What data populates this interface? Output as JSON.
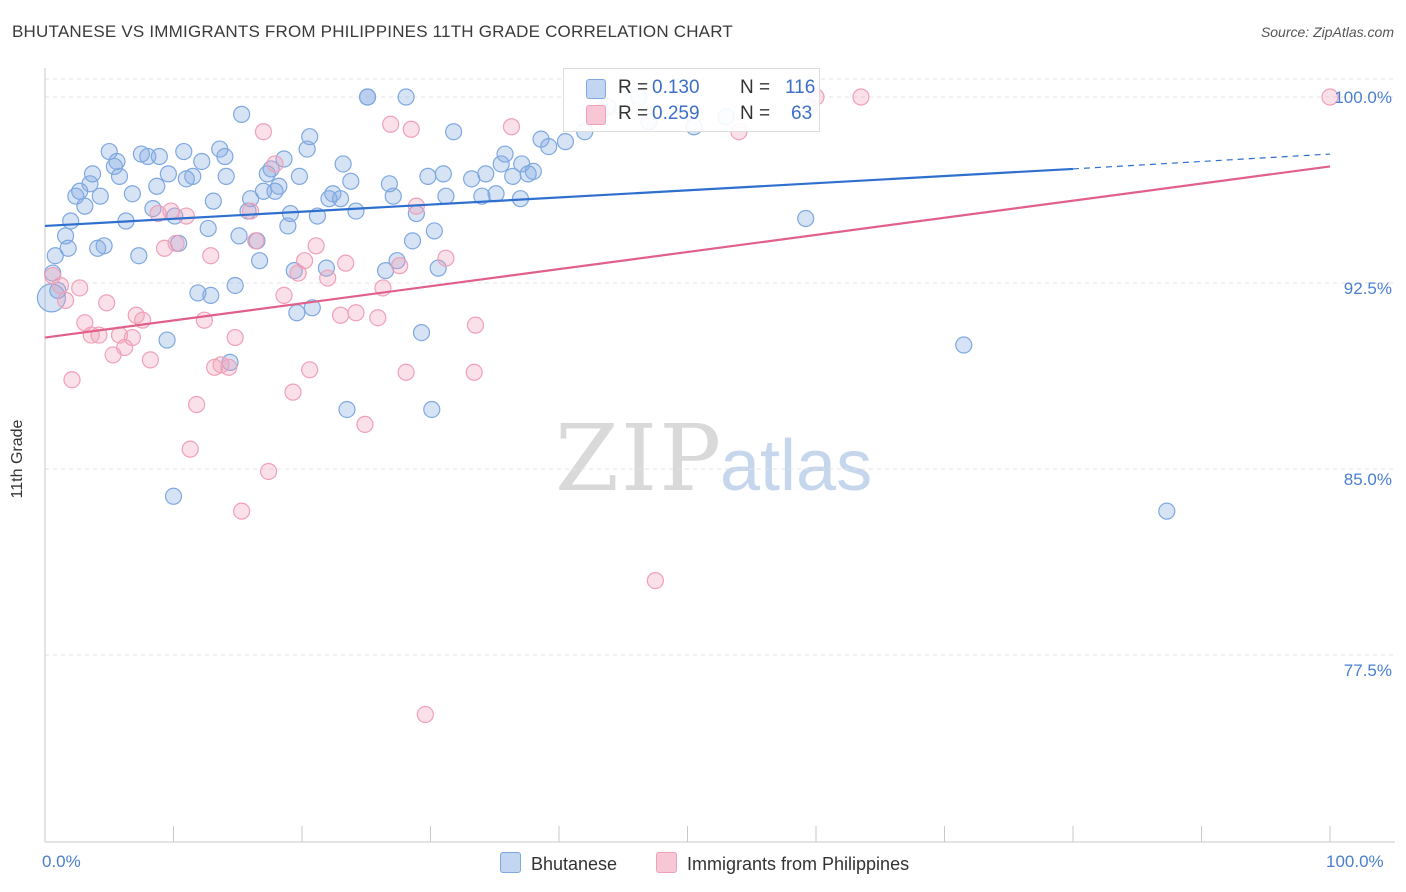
{
  "title": "BHUTANESE VS IMMIGRANTS FROM PHILIPPINES 11TH GRADE CORRELATION CHART",
  "source": "Source: ZipAtlas.com",
  "watermark": {
    "zip": "ZIP",
    "atlas": "atlas"
  },
  "colors": {
    "blue": "#7fa8e0",
    "blue_line": "#2f6fce",
    "pink": "#f0a0b8",
    "pink_line": "#e0608a",
    "grid": "#e3e3e3",
    "axis_label": "#4a7fd0"
  },
  "legend": {
    "rows": [
      {
        "r_label": "R =",
        "r_value": "0.130",
        "n_label": "N =",
        "n_value": "116"
      },
      {
        "r_label": "R =",
        "r_value": "0.259",
        "n_label": "N =",
        "n_value": "63"
      }
    ]
  },
  "bottom_legend": [
    "Bhutanese",
    "Immigrants from Philippines"
  ],
  "chart_data": {
    "type": "scatter",
    "title": "BHUTANESE VS IMMIGRANTS FROM PHILIPPINES 11TH GRADE CORRELATION CHART",
    "xlabel": "",
    "ylabel": "11th Grade",
    "xlim": [
      0,
      100
    ],
    "ylim": [
      70.0,
      101.0
    ],
    "x_tick_labels": [
      "0.0%",
      "100.0%"
    ],
    "y_ticks": [
      77.5,
      85.0,
      92.5,
      100.0
    ],
    "y_tick_labels": [
      "77.5%",
      "85.0%",
      "92.5%",
      "100.0%"
    ],
    "grid": true,
    "legend_position": "top-center",
    "series": [
      {
        "name": "Bhutanese",
        "R": 0.13,
        "N": 116,
        "trend": {
          "x0": 0,
          "y0": 94.8,
          "x1": 80,
          "y1": 97.1,
          "dashed_to_x": 100,
          "dashed_to_y": 97.7
        },
        "points": [
          [
            0.5,
            91.9
          ],
          [
            0.6,
            92.9
          ],
          [
            0.8,
            93.6
          ],
          [
            1.0,
            92.2
          ],
          [
            1.6,
            94.4
          ],
          [
            1.8,
            93.9
          ],
          [
            2.0,
            95.0
          ],
          [
            2.4,
            96.0
          ],
          [
            2.7,
            96.2
          ],
          [
            3.1,
            95.6
          ],
          [
            3.5,
            96.5
          ],
          [
            3.7,
            96.9
          ],
          [
            4.1,
            93.9
          ],
          [
            4.3,
            96.0
          ],
          [
            4.6,
            94.0
          ],
          [
            5.0,
            97.8
          ],
          [
            5.4,
            97.2
          ],
          [
            5.6,
            97.4
          ],
          [
            5.8,
            96.8
          ],
          [
            6.3,
            95.0
          ],
          [
            6.8,
            96.1
          ],
          [
            7.3,
            93.6
          ],
          [
            7.5,
            97.7
          ],
          [
            8.0,
            97.6
          ],
          [
            8.4,
            95.5
          ],
          [
            8.7,
            96.4
          ],
          [
            8.9,
            97.6
          ],
          [
            9.5,
            90.2
          ],
          [
            9.6,
            96.9
          ],
          [
            10.0,
            83.9
          ],
          [
            10.1,
            95.2
          ],
          [
            10.4,
            94.1
          ],
          [
            10.8,
            97.8
          ],
          [
            11.0,
            96.7
          ],
          [
            11.5,
            96.8
          ],
          [
            11.9,
            92.1
          ],
          [
            12.2,
            97.4
          ],
          [
            12.7,
            94.7
          ],
          [
            12.9,
            92.0
          ],
          [
            13.1,
            95.8
          ],
          [
            13.6,
            97.9
          ],
          [
            14.0,
            97.6
          ],
          [
            14.1,
            96.8
          ],
          [
            14.4,
            89.3
          ],
          [
            14.8,
            92.4
          ],
          [
            15.1,
            94.4
          ],
          [
            15.3,
            99.3
          ],
          [
            15.8,
            95.4
          ],
          [
            16.0,
            95.9
          ],
          [
            16.5,
            94.2
          ],
          [
            16.7,
            93.4
          ],
          [
            17.0,
            96.2
          ],
          [
            17.3,
            96.9
          ],
          [
            17.6,
            97.1
          ],
          [
            17.9,
            96.2
          ],
          [
            18.2,
            96.4
          ],
          [
            18.6,
            97.5
          ],
          [
            18.9,
            94.8
          ],
          [
            19.1,
            95.3
          ],
          [
            19.4,
            93.0
          ],
          [
            19.6,
            91.3
          ],
          [
            19.8,
            96.8
          ],
          [
            20.4,
            97.9
          ],
          [
            20.6,
            98.4
          ],
          [
            20.8,
            91.5
          ],
          [
            21.2,
            95.2
          ],
          [
            21.9,
            93.1
          ],
          [
            22.1,
            95.9
          ],
          [
            22.4,
            96.1
          ],
          [
            23.0,
            95.9
          ],
          [
            23.2,
            97.3
          ],
          [
            23.5,
            87.4
          ],
          [
            23.8,
            96.6
          ],
          [
            24.2,
            95.4
          ],
          [
            25.1,
            100.0
          ],
          [
            25.1,
            100.0
          ],
          [
            26.5,
            93.0
          ],
          [
            26.8,
            96.5
          ],
          [
            27.1,
            96.0
          ],
          [
            27.4,
            93.4
          ],
          [
            28.1,
            100.0
          ],
          [
            28.6,
            94.2
          ],
          [
            28.9,
            95.3
          ],
          [
            29.3,
            90.5
          ],
          [
            29.8,
            96.8
          ],
          [
            30.1,
            87.4
          ],
          [
            30.3,
            94.6
          ],
          [
            30.6,
            93.1
          ],
          [
            31.0,
            96.9
          ],
          [
            31.2,
            96.0
          ],
          [
            31.8,
            98.6
          ],
          [
            33.2,
            96.7
          ],
          [
            34.0,
            96.0
          ],
          [
            34.3,
            96.9
          ],
          [
            35.1,
            96.1
          ],
          [
            35.5,
            97.3
          ],
          [
            35.8,
            97.7
          ],
          [
            36.4,
            96.8
          ],
          [
            37.0,
            95.9
          ],
          [
            37.1,
            97.3
          ],
          [
            37.6,
            96.9
          ],
          [
            38.0,
            97.0
          ],
          [
            38.6,
            98.3
          ],
          [
            39.2,
            98.0
          ],
          [
            40.5,
            98.2
          ],
          [
            42.0,
            98.6
          ],
          [
            43.2,
            99.4
          ],
          [
            43.8,
            99.6
          ],
          [
            46.2,
            100.0
          ],
          [
            47.0,
            99.0
          ],
          [
            50.5,
            98.8
          ],
          [
            53.0,
            99.2
          ],
          [
            59.2,
            95.1
          ],
          [
            59.5,
            99.6
          ],
          [
            71.5,
            90.0
          ],
          [
            87.3,
            83.3
          ]
        ]
      },
      {
        "name": "Immigrants from Philippines",
        "R": 0.259,
        "N": 63,
        "trend": {
          "x0": 0,
          "y0": 90.3,
          "x1": 100,
          "y1": 97.2
        },
        "points": [
          [
            0.6,
            92.8
          ],
          [
            1.2,
            92.4
          ],
          [
            1.6,
            91.8
          ],
          [
            2.1,
            88.6
          ],
          [
            2.7,
            92.3
          ],
          [
            3.1,
            90.9
          ],
          [
            3.6,
            90.4
          ],
          [
            4.2,
            90.4
          ],
          [
            4.8,
            91.7
          ],
          [
            5.3,
            89.6
          ],
          [
            5.8,
            90.4
          ],
          [
            6.2,
            89.9
          ],
          [
            6.8,
            90.3
          ],
          [
            7.1,
            91.2
          ],
          [
            7.6,
            91.0
          ],
          [
            8.2,
            89.4
          ],
          [
            8.8,
            95.3
          ],
          [
            9.3,
            93.9
          ],
          [
            9.8,
            95.4
          ],
          [
            10.2,
            94.1
          ],
          [
            11.0,
            95.2
          ],
          [
            11.3,
            85.8
          ],
          [
            11.8,
            87.6
          ],
          [
            12.4,
            91.0
          ],
          [
            12.9,
            93.6
          ],
          [
            13.2,
            89.1
          ],
          [
            13.7,
            89.2
          ],
          [
            14.3,
            89.1
          ],
          [
            14.8,
            90.3
          ],
          [
            15.3,
            83.3
          ],
          [
            16.0,
            95.4
          ],
          [
            16.4,
            94.2
          ],
          [
            17.0,
            98.6
          ],
          [
            17.4,
            84.9
          ],
          [
            17.9,
            97.3
          ],
          [
            18.6,
            92.0
          ],
          [
            19.3,
            88.1
          ],
          [
            19.7,
            92.9
          ],
          [
            20.2,
            93.4
          ],
          [
            20.6,
            89.0
          ],
          [
            21.1,
            94.0
          ],
          [
            22.0,
            92.7
          ],
          [
            23.0,
            91.2
          ],
          [
            23.4,
            93.3
          ],
          [
            24.2,
            91.3
          ],
          [
            24.9,
            86.8
          ],
          [
            25.9,
            91.1
          ],
          [
            26.3,
            92.3
          ],
          [
            26.9,
            98.9
          ],
          [
            27.6,
            93.2
          ],
          [
            28.1,
            88.9
          ],
          [
            28.5,
            98.7
          ],
          [
            28.9,
            95.6
          ],
          [
            29.6,
            75.1
          ],
          [
            31.2,
            93.5
          ],
          [
            33.5,
            90.8
          ],
          [
            33.4,
            88.9
          ],
          [
            36.3,
            98.8
          ],
          [
            47.5,
            80.5
          ],
          [
            54.0,
            98.6
          ],
          [
            60.0,
            100.0
          ],
          [
            63.5,
            100.0
          ],
          [
            100.0,
            100.0
          ]
        ]
      }
    ]
  }
}
